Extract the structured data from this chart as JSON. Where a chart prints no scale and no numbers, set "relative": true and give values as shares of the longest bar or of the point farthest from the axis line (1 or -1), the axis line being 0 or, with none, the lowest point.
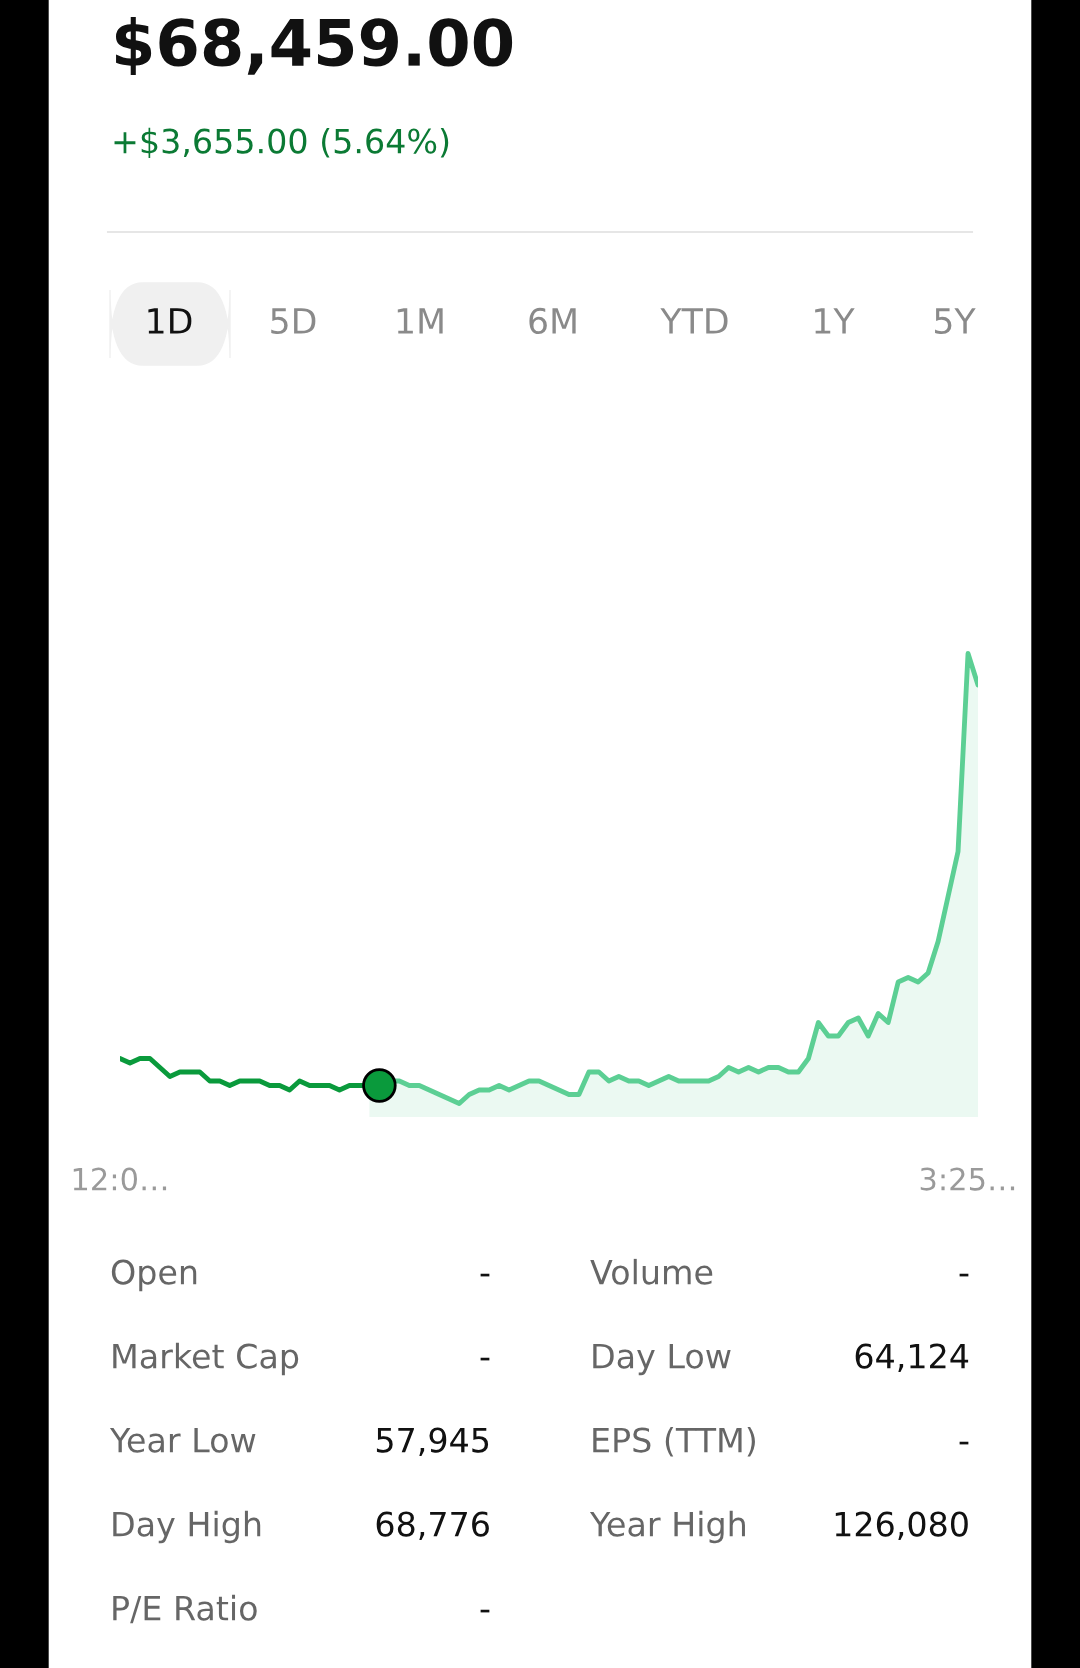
{
  "chart_data": {
    "type": "line",
    "title": "$68,459.00",
    "subtitle": "+$3,655.00 (5.64%)",
    "relative": true,
    "tick_labels": "x",
    "categories": [
      "12:0…",
      null,
      null,
      null,
      null,
      null,
      null,
      null,
      null,
      null,
      null,
      null,
      null,
      null,
      null,
      null,
      null,
      null,
      null,
      null,
      null,
      null,
      null,
      null,
      null,
      null,
      null,
      null,
      null,
      null,
      null,
      null,
      null,
      null,
      null,
      null,
      null,
      null,
      null,
      null,
      null,
      null,
      null,
      null,
      null,
      null,
      null,
      null,
      null,
      null,
      null,
      null,
      null,
      null,
      null,
      null,
      null,
      null,
      null,
      null,
      null,
      null,
      null,
      null,
      null,
      null,
      null,
      null,
      null,
      null,
      null,
      null,
      null,
      null,
      null,
      null,
      null,
      null,
      null,
      null,
      null,
      null,
      null,
      null,
      null,
      "3:25…",
      null
    ],
    "annotations": [
      "1D",
      "5D",
      "1M",
      "6M",
      "YTD",
      "1Y",
      "5Y",
      "Open",
      "-",
      "Volume",
      "-",
      "Market Cap",
      "-",
      "Day Low",
      "64,124",
      "Year Low",
      "57,945",
      "EPS (TTM)",
      "-",
      "Day High",
      "68,776",
      "Year High",
      "126,080",
      "P/E Ratio",
      "-"
    ],
    "series": [
      {
        "type": "line",
        "color": "#0a9a3c",
        "values": [
          0.1,
          0.09,
          0.1,
          0.1,
          0.08,
          0.06,
          0.07,
          0.07,
          0.07,
          0.05,
          0.05,
          0.04,
          0.05,
          0.05,
          0.05,
          0.04,
          0.04,
          0.03,
          0.05,
          0.04,
          0.04,
          0.04,
          0.03,
          0.04,
          0.04,
          0.04,
          null,
          null,
          null,
          null,
          null,
          null,
          null,
          null,
          null,
          null,
          null,
          null,
          null,
          null,
          null,
          null,
          null,
          null,
          null,
          null,
          null,
          null,
          null,
          null,
          null,
          null,
          null,
          null,
          null,
          null,
          null,
          null,
          null,
          null,
          null,
          null,
          null,
          null,
          null,
          null,
          null,
          null,
          null,
          null,
          null,
          null,
          null,
          null,
          null,
          null,
          null,
          null,
          null,
          null,
          null,
          null,
          null,
          null,
          null,
          null,
          null
        ]
      },
      {
        "type": "area",
        "color": "#5ccf94",
        "values": [
          null,
          null,
          null,
          null,
          null,
          null,
          null,
          null,
          null,
          null,
          null,
          null,
          null,
          null,
          null,
          null,
          null,
          null,
          null,
          null,
          null,
          null,
          null,
          null,
          null,
          0.04,
          0.04,
          0.05,
          0.05,
          0.04,
          0.04,
          0.03,
          0.02,
          0.01,
          0.0,
          0.02,
          0.03,
          0.03,
          0.04,
          0.03,
          0.04,
          0.05,
          0.05,
          0.04,
          0.03,
          0.02,
          0.02,
          0.07,
          0.07,
          0.05,
          0.06,
          0.05,
          0.05,
          0.04,
          0.05,
          0.06,
          0.05,
          0.05,
          0.05,
          0.05,
          0.06,
          0.08,
          0.07,
          0.08,
          0.07,
          0.08,
          0.08,
          0.07,
          0.07,
          0.1,
          0.18,
          0.15,
          0.15,
          0.18,
          0.19,
          0.15,
          0.2,
          0.18,
          0.27,
          0.28,
          0.27,
          0.29,
          0.36,
          0.46,
          0.56,
          1.0,
          0.93
        ]
      },
      {
        "type": "scatter",
        "color": "#0a9a3c",
        "marker": "circle",
        "values": [
          null,
          null,
          null,
          null,
          null,
          null,
          null,
          null,
          null,
          null,
          null,
          null,
          null,
          null,
          null,
          null,
          null,
          null,
          null,
          null,
          null,
          null,
          null,
          null,
          null,
          null,
          0.04,
          null,
          null,
          null,
          null,
          null,
          null,
          null,
          null,
          null,
          null,
          null,
          null,
          null,
          null,
          null,
          null,
          null,
          null,
          null,
          null,
          null,
          null,
          null,
          null,
          null,
          null,
          null,
          null,
          null,
          null,
          null,
          null,
          null,
          null,
          null,
          null,
          null,
          null,
          null,
          null,
          null,
          null,
          null,
          null,
          null,
          null,
          null,
          null,
          null,
          null,
          null,
          null,
          null,
          null,
          null,
          null,
          null,
          null,
          null,
          null
        ]
      }
    ]
  }
}
